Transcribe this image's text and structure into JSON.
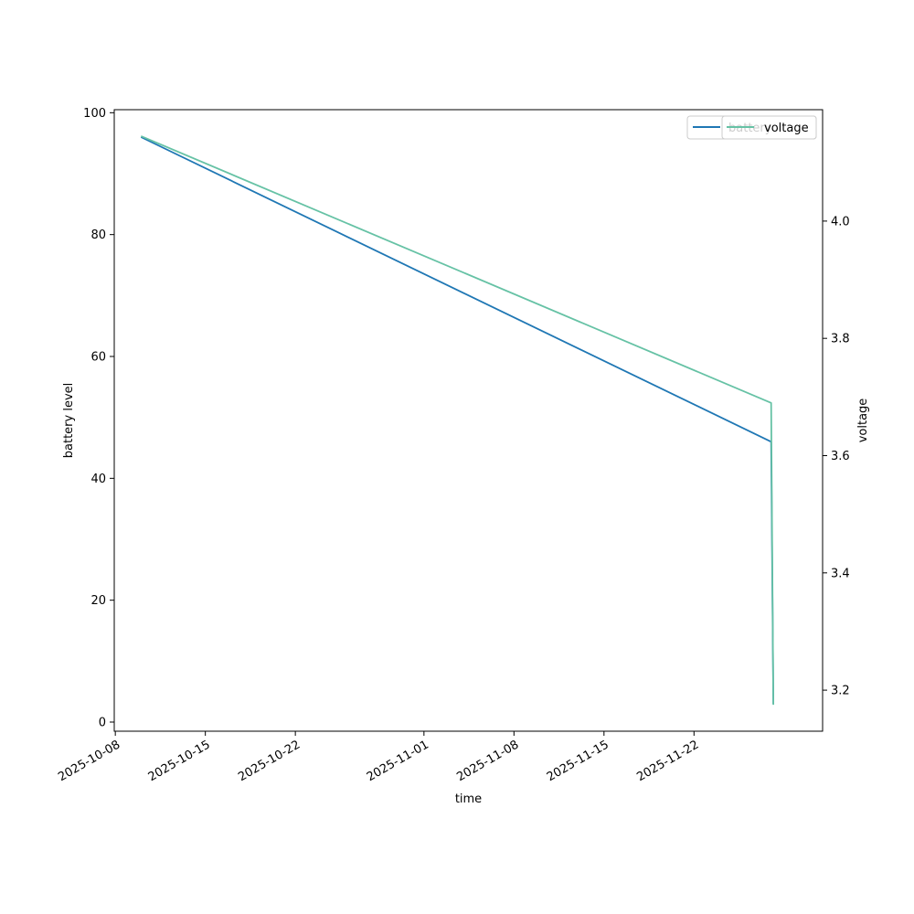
{
  "chart_data": {
    "type": "line",
    "xlabel": "time",
    "ylabel": "battery level",
    "y2label": "voltage",
    "xlim": [
      "2025-10-07T22:00",
      "2025-12-02T00:00"
    ],
    "ylim": [
      -1.5,
      100.5
    ],
    "y2lim": [
      3.13,
      4.19
    ],
    "xticks": [
      "2025-10-08",
      "2025-10-15",
      "2025-10-22",
      "2025-11-01",
      "2025-11-08",
      "2025-11-15",
      "2025-11-22"
    ],
    "yticks": [
      0,
      20,
      40,
      60,
      80,
      100
    ],
    "y2ticks": [
      3.2,
      3.4,
      3.6,
      3.8,
      4.0
    ],
    "y2tick_labels": [
      "3.2",
      "3.4",
      "3.6",
      "3.8",
      "4.0"
    ],
    "grid": false,
    "legends": [
      {
        "placement": "top-right",
        "entries": [
          "battery"
        ],
        "partially_hidden": true
      },
      {
        "placement": "top-right",
        "entries": [
          "voltage"
        ]
      }
    ],
    "series": [
      {
        "name": "battery",
        "axis": "left",
        "color": "#1f77b4",
        "points": [
          {
            "x": "2025-10-10T00:00",
            "y": 96
          },
          {
            "x": "2025-11-28T00:00",
            "y": 46
          },
          {
            "x": "2025-11-28T04:00",
            "y": 3
          }
        ]
      },
      {
        "name": "voltage",
        "axis": "right",
        "color": "#66c2a5",
        "points": [
          {
            "x": "2025-10-10T00:00",
            "y": 4.145
          },
          {
            "x": "2025-11-28T00:00",
            "y": 3.69
          },
          {
            "x": "2025-11-28T04:00",
            "y": 3.175
          }
        ]
      }
    ]
  }
}
